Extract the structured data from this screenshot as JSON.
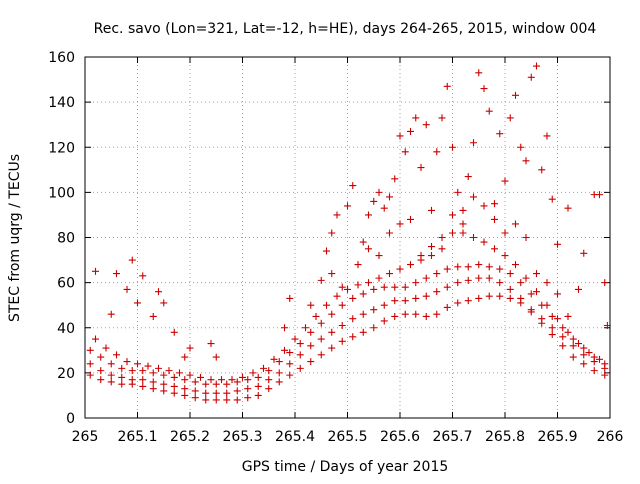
{
  "chart_data": {
    "type": "scatter",
    "title": "Rec. savo (Lon=321, Lat=-12, h=HE), days 264-265, 2015, window 004",
    "xlabel": "GPS time / Days of year 2015",
    "ylabel": "STEC from uqrg / TECUs",
    "xlim": [
      265,
      266
    ],
    "ylim": [
      0,
      160
    ],
    "xticks": [
      "265",
      "265.1",
      "265.2",
      "265.3",
      "265.4",
      "265.5",
      "265.6",
      "265.7",
      "265.8",
      "265.9",
      "266"
    ],
    "yticks": [
      "0",
      "20",
      "40",
      "60",
      "80",
      "100",
      "120",
      "140",
      "160"
    ],
    "grid": true,
    "marker": "+",
    "color": "#cc0000",
    "series": [
      {
        "points": [
          [
            265.01,
            19
          ],
          [
            265.03,
            17
          ],
          [
            265.05,
            16
          ],
          [
            265.07,
            15
          ],
          [
            265.09,
            15
          ],
          [
            265.11,
            14
          ],
          [
            265.13,
            13
          ],
          [
            265.15,
            12
          ],
          [
            265.17,
            11
          ],
          [
            265.19,
            10
          ],
          [
            265.21,
            9
          ],
          [
            265.23,
            8
          ],
          [
            265.25,
            8
          ],
          [
            265.27,
            8
          ],
          [
            265.29,
            8
          ],
          [
            265.31,
            9
          ],
          [
            265.33,
            10
          ],
          [
            265.35,
            13
          ],
          [
            265.37,
            16
          ],
          [
            265.39,
            19
          ],
          [
            265.41,
            22
          ],
          [
            265.43,
            25
          ],
          [
            265.45,
            28
          ],
          [
            265.47,
            31
          ],
          [
            265.49,
            34
          ],
          [
            265.51,
            36
          ],
          [
            265.53,
            38
          ],
          [
            265.55,
            40
          ],
          [
            265.57,
            43
          ],
          [
            265.59,
            45
          ],
          [
            265.61,
            46
          ],
          [
            265.63,
            46
          ],
          [
            265.65,
            45
          ],
          [
            265.67,
            46
          ],
          [
            265.69,
            49
          ],
          [
            265.71,
            51
          ],
          [
            265.73,
            52
          ],
          [
            265.75,
            53
          ],
          [
            265.77,
            54
          ],
          [
            265.79,
            54
          ],
          [
            265.81,
            53
          ],
          [
            265.83,
            51
          ],
          [
            265.85,
            47
          ],
          [
            265.87,
            42
          ],
          [
            265.89,
            37
          ],
          [
            265.91,
            32
          ],
          [
            265.93,
            27
          ],
          [
            265.95,
            24
          ],
          [
            265.97,
            21
          ],
          [
            265.99,
            19
          ]
        ]
      },
      {
        "points": [
          [
            265.01,
            24
          ],
          [
            265.03,
            21
          ],
          [
            265.05,
            19
          ],
          [
            265.07,
            18
          ],
          [
            265.09,
            17
          ],
          [
            265.11,
            17
          ],
          [
            265.13,
            16
          ],
          [
            265.15,
            15
          ],
          [
            265.17,
            14
          ],
          [
            265.19,
            13
          ],
          [
            265.21,
            12
          ],
          [
            265.23,
            11
          ],
          [
            265.25,
            11
          ],
          [
            265.27,
            11
          ],
          [
            265.29,
            12
          ],
          [
            265.31,
            13
          ],
          [
            265.33,
            14
          ],
          [
            265.35,
            17
          ],
          [
            265.37,
            20
          ],
          [
            265.39,
            24
          ],
          [
            265.41,
            28
          ],
          [
            265.43,
            32
          ],
          [
            265.45,
            35
          ],
          [
            265.47,
            38
          ],
          [
            265.49,
            41
          ],
          [
            265.51,
            44
          ],
          [
            265.53,
            46
          ],
          [
            265.55,
            48
          ],
          [
            265.57,
            50
          ],
          [
            265.59,
            52
          ],
          [
            265.61,
            52
          ],
          [
            265.63,
            53
          ],
          [
            265.65,
            54
          ],
          [
            265.67,
            56
          ],
          [
            265.69,
            58
          ],
          [
            265.71,
            60
          ],
          [
            265.73,
            61
          ],
          [
            265.75,
            62
          ],
          [
            265.77,
            62
          ],
          [
            265.79,
            60
          ],
          [
            265.81,
            57
          ],
          [
            265.83,
            53
          ],
          [
            265.85,
            48
          ],
          [
            265.87,
            44
          ],
          [
            265.89,
            40
          ],
          [
            265.91,
            36
          ],
          [
            265.93,
            32
          ],
          [
            265.95,
            28
          ],
          [
            265.97,
            25
          ],
          [
            265.99,
            22
          ]
        ]
      },
      {
        "points": [
          [
            265.01,
            30
          ],
          [
            265.03,
            27
          ],
          [
            265.05,
            24
          ],
          [
            265.07,
            22
          ],
          [
            265.09,
            21
          ],
          [
            265.11,
            21
          ],
          [
            265.13,
            20
          ],
          [
            265.15,
            19
          ],
          [
            265.17,
            18
          ],
          [
            265.19,
            17
          ],
          [
            265.21,
            16
          ],
          [
            265.23,
            15
          ],
          [
            265.25,
            15
          ],
          [
            265.27,
            15
          ],
          [
            265.29,
            16
          ],
          [
            265.31,
            17
          ],
          [
            265.33,
            18
          ],
          [
            265.35,
            21
          ],
          [
            265.37,
            25
          ],
          [
            265.39,
            29
          ],
          [
            265.41,
            33
          ],
          [
            265.43,
            38
          ],
          [
            265.45,
            42
          ],
          [
            265.47,
            46
          ],
          [
            265.49,
            50
          ],
          [
            265.51,
            53
          ],
          [
            265.53,
            55
          ],
          [
            265.55,
            57
          ],
          [
            265.57,
            58
          ],
          [
            265.59,
            58
          ],
          [
            265.61,
            58
          ],
          [
            265.63,
            60
          ],
          [
            265.65,
            62
          ],
          [
            265.67,
            64
          ],
          [
            265.69,
            66
          ],
          [
            265.71,
            67
          ],
          [
            265.73,
            67
          ],
          [
            265.75,
            68
          ],
          [
            265.77,
            67
          ],
          [
            265.79,
            66
          ],
          [
            265.81,
            64
          ],
          [
            265.83,
            60
          ],
          [
            265.85,
            55
          ],
          [
            265.87,
            50
          ],
          [
            265.89,
            45
          ],
          [
            265.91,
            40
          ],
          [
            265.93,
            35
          ],
          [
            265.95,
            31
          ],
          [
            265.97,
            27
          ],
          [
            265.99,
            24
          ]
        ]
      },
      {
        "points": [
          [
            265.02,
            35
          ],
          [
            265.04,
            31
          ],
          [
            265.06,
            28
          ],
          [
            265.08,
            25
          ],
          [
            265.1,
            24
          ],
          [
            265.12,
            23
          ],
          [
            265.14,
            22
          ],
          [
            265.16,
            21
          ],
          [
            265.18,
            20
          ],
          [
            265.2,
            19
          ],
          [
            265.22,
            18
          ],
          [
            265.24,
            17
          ],
          [
            265.26,
            17
          ],
          [
            265.28,
            17
          ],
          [
            265.3,
            18
          ],
          [
            265.32,
            20
          ],
          [
            265.34,
            22
          ],
          [
            265.36,
            26
          ],
          [
            265.38,
            30
          ],
          [
            265.4,
            35
          ],
          [
            265.42,
            40
          ],
          [
            265.44,
            45
          ],
          [
            265.46,
            50
          ],
          [
            265.48,
            54
          ],
          [
            265.5,
            57
          ],
          [
            265.52,
            59
          ],
          [
            265.54,
            60
          ],
          [
            265.56,
            62
          ],
          [
            265.58,
            64
          ],
          [
            265.6,
            66
          ],
          [
            265.62,
            68
          ],
          [
            265.64,
            72
          ],
          [
            265.66,
            76
          ],
          [
            265.68,
            80
          ],
          [
            265.7,
            82
          ],
          [
            265.72,
            82
          ],
          [
            265.74,
            80
          ],
          [
            265.76,
            78
          ],
          [
            265.78,
            75
          ],
          [
            265.8,
            72
          ],
          [
            265.82,
            68
          ],
          [
            265.84,
            62
          ],
          [
            265.86,
            56
          ],
          [
            265.88,
            50
          ],
          [
            265.9,
            44
          ],
          [
            265.92,
            38
          ],
          [
            265.94,
            33
          ],
          [
            265.96,
            29
          ],
          [
            265.98,
            26
          ]
        ]
      },
      {
        "points": [
          [
            265.02,
            65
          ],
          [
            265.05,
            46
          ],
          [
            265.06,
            64
          ],
          [
            265.08,
            57
          ],
          [
            265.09,
            70
          ],
          [
            265.1,
            51
          ],
          [
            265.11,
            63
          ],
          [
            265.13,
            45
          ],
          [
            265.14,
            56
          ],
          [
            265.15,
            51
          ],
          [
            265.17,
            38
          ],
          [
            265.19,
            27
          ],
          [
            265.2,
            31
          ],
          [
            265.24,
            33
          ],
          [
            265.25,
            27
          ],
          [
            265.38,
            40
          ],
          [
            265.39,
            53
          ],
          [
            265.43,
            50
          ],
          [
            265.45,
            61
          ],
          [
            265.46,
            74
          ],
          [
            265.47,
            82
          ],
          [
            265.48,
            90
          ],
          [
            265.5,
            94
          ],
          [
            265.51,
            103
          ],
          [
            265.53,
            78
          ],
          [
            265.54,
            90
          ],
          [
            265.55,
            96
          ],
          [
            265.56,
            100
          ],
          [
            265.57,
            93
          ],
          [
            265.58,
            98
          ],
          [
            265.59,
            106
          ],
          [
            265.6,
            125
          ],
          [
            265.61,
            118
          ],
          [
            265.62,
            127
          ],
          [
            265.63,
            133
          ],
          [
            265.64,
            111
          ],
          [
            265.65,
            130
          ],
          [
            265.66,
            92
          ],
          [
            265.67,
            118
          ],
          [
            265.68,
            133
          ],
          [
            265.69,
            147
          ],
          [
            265.7,
            120
          ],
          [
            265.71,
            100
          ],
          [
            265.72,
            92
          ],
          [
            265.73,
            107
          ],
          [
            265.74,
            122
          ],
          [
            265.75,
            153
          ],
          [
            265.76,
            146
          ],
          [
            265.77,
            136
          ],
          [
            265.78,
            95
          ],
          [
            265.79,
            126
          ],
          [
            265.8,
            105
          ],
          [
            265.81,
            133
          ],
          [
            265.82,
            143
          ],
          [
            265.83,
            120
          ],
          [
            265.84,
            114
          ],
          [
            265.85,
            151
          ],
          [
            265.86,
            156
          ],
          [
            265.87,
            110
          ],
          [
            265.88,
            125
          ],
          [
            265.89,
            97
          ],
          [
            265.9,
            77
          ],
          [
            265.92,
            93
          ],
          [
            265.94,
            57
          ],
          [
            265.95,
            73
          ],
          [
            265.97,
            99
          ],
          [
            265.98,
            99
          ],
          [
            265.99,
            60
          ],
          [
            265.995,
            41
          ]
        ]
      },
      {
        "points": [
          [
            265.47,
            64
          ],
          [
            265.49,
            58
          ],
          [
            265.52,
            68
          ],
          [
            265.54,
            75
          ],
          [
            265.56,
            72
          ],
          [
            265.58,
            82
          ],
          [
            265.6,
            86
          ],
          [
            265.62,
            88
          ],
          [
            265.64,
            70
          ],
          [
            265.66,
            72
          ],
          [
            265.68,
            75
          ],
          [
            265.7,
            90
          ],
          [
            265.72,
            86
          ],
          [
            265.74,
            98
          ],
          [
            265.76,
            94
          ],
          [
            265.78,
            88
          ],
          [
            265.8,
            82
          ],
          [
            265.82,
            86
          ],
          [
            265.84,
            80
          ],
          [
            265.86,
            64
          ],
          [
            265.88,
            60
          ],
          [
            265.9,
            55
          ],
          [
            265.92,
            45
          ]
        ]
      }
    ]
  }
}
